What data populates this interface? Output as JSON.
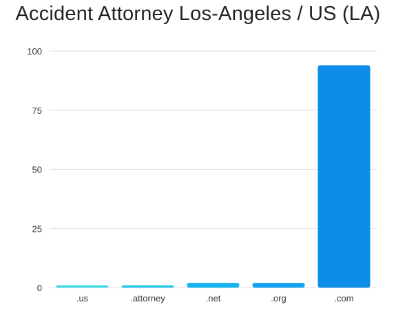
{
  "chart_data": {
    "type": "bar",
    "title": "Accident Attorney Los-Angeles / US (LA)",
    "xlabel": "",
    "ylabel": "",
    "categories": [
      ".us",
      ".attorney",
      ".net",
      ".org",
      ".com"
    ],
    "values": [
      1,
      1,
      2,
      2,
      94
    ],
    "ylim": [
      0,
      100
    ],
    "yticks": [
      "0",
      "25",
      "50",
      "75",
      "100"
    ],
    "grid": true,
    "colors": [
      "#3ddbe0",
      "#22c9e8",
      "#18b4ef",
      "#12a2ef",
      "#0b8de8"
    ]
  }
}
